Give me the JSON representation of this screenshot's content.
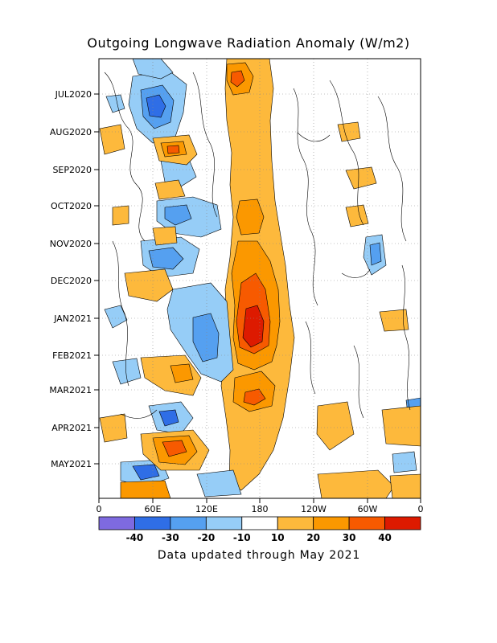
{
  "chart_data": {
    "type": "heatmap",
    "title": "Outgoing Longwave Radiation Anomaly (W/m2)",
    "footer": "Data updated through May 2021",
    "x_ticks": [
      "0",
      "60E",
      "120E",
      "180",
      "120W",
      "60W",
      "0"
    ],
    "y_ticks": [
      "JUL2020",
      "AUG2020",
      "SEP2020",
      "OCT2020",
      "NOV2020",
      "DEC2020",
      "JAN2021",
      "FEB2021",
      "MAR2021",
      "APR2021",
      "MAY2021"
    ],
    "colorbar_labels": [
      "-40",
      "-30",
      "-20",
      "-10",
      "10",
      "20",
      "30",
      "40"
    ],
    "colorbar_colors": [
      "#7e6ae0",
      "#2f6ee6",
      "#55a0f0",
      "#96cdf7",
      "#ffffff",
      "#fdb93c",
      "#fb9800",
      "#f75a00",
      "#dd1a00"
    ],
    "grid": true,
    "features": [
      {
        "name": "dateline positive band",
        "lon": 180,
        "start": "JUN2020",
        "end": "MAY2021",
        "value": 20
      },
      {
        "name": "dateline peak",
        "lon": 175,
        "start": "JAN2021",
        "end": "FEB2021",
        "value": 45
      },
      {
        "name": "Indian Ocean negative cluster",
        "lon": 70,
        "start": "JUL2020",
        "end": "AUG2020",
        "value": -30
      },
      {
        "name": "Maritime continent negative band",
        "lon": 120,
        "start": "DEC2020",
        "end": "FEB2021",
        "value": -20
      },
      {
        "name": "Indian Ocean positive blob",
        "lon": 85,
        "start": "APR2021",
        "end": "MAY2021",
        "value": 30
      }
    ]
  }
}
